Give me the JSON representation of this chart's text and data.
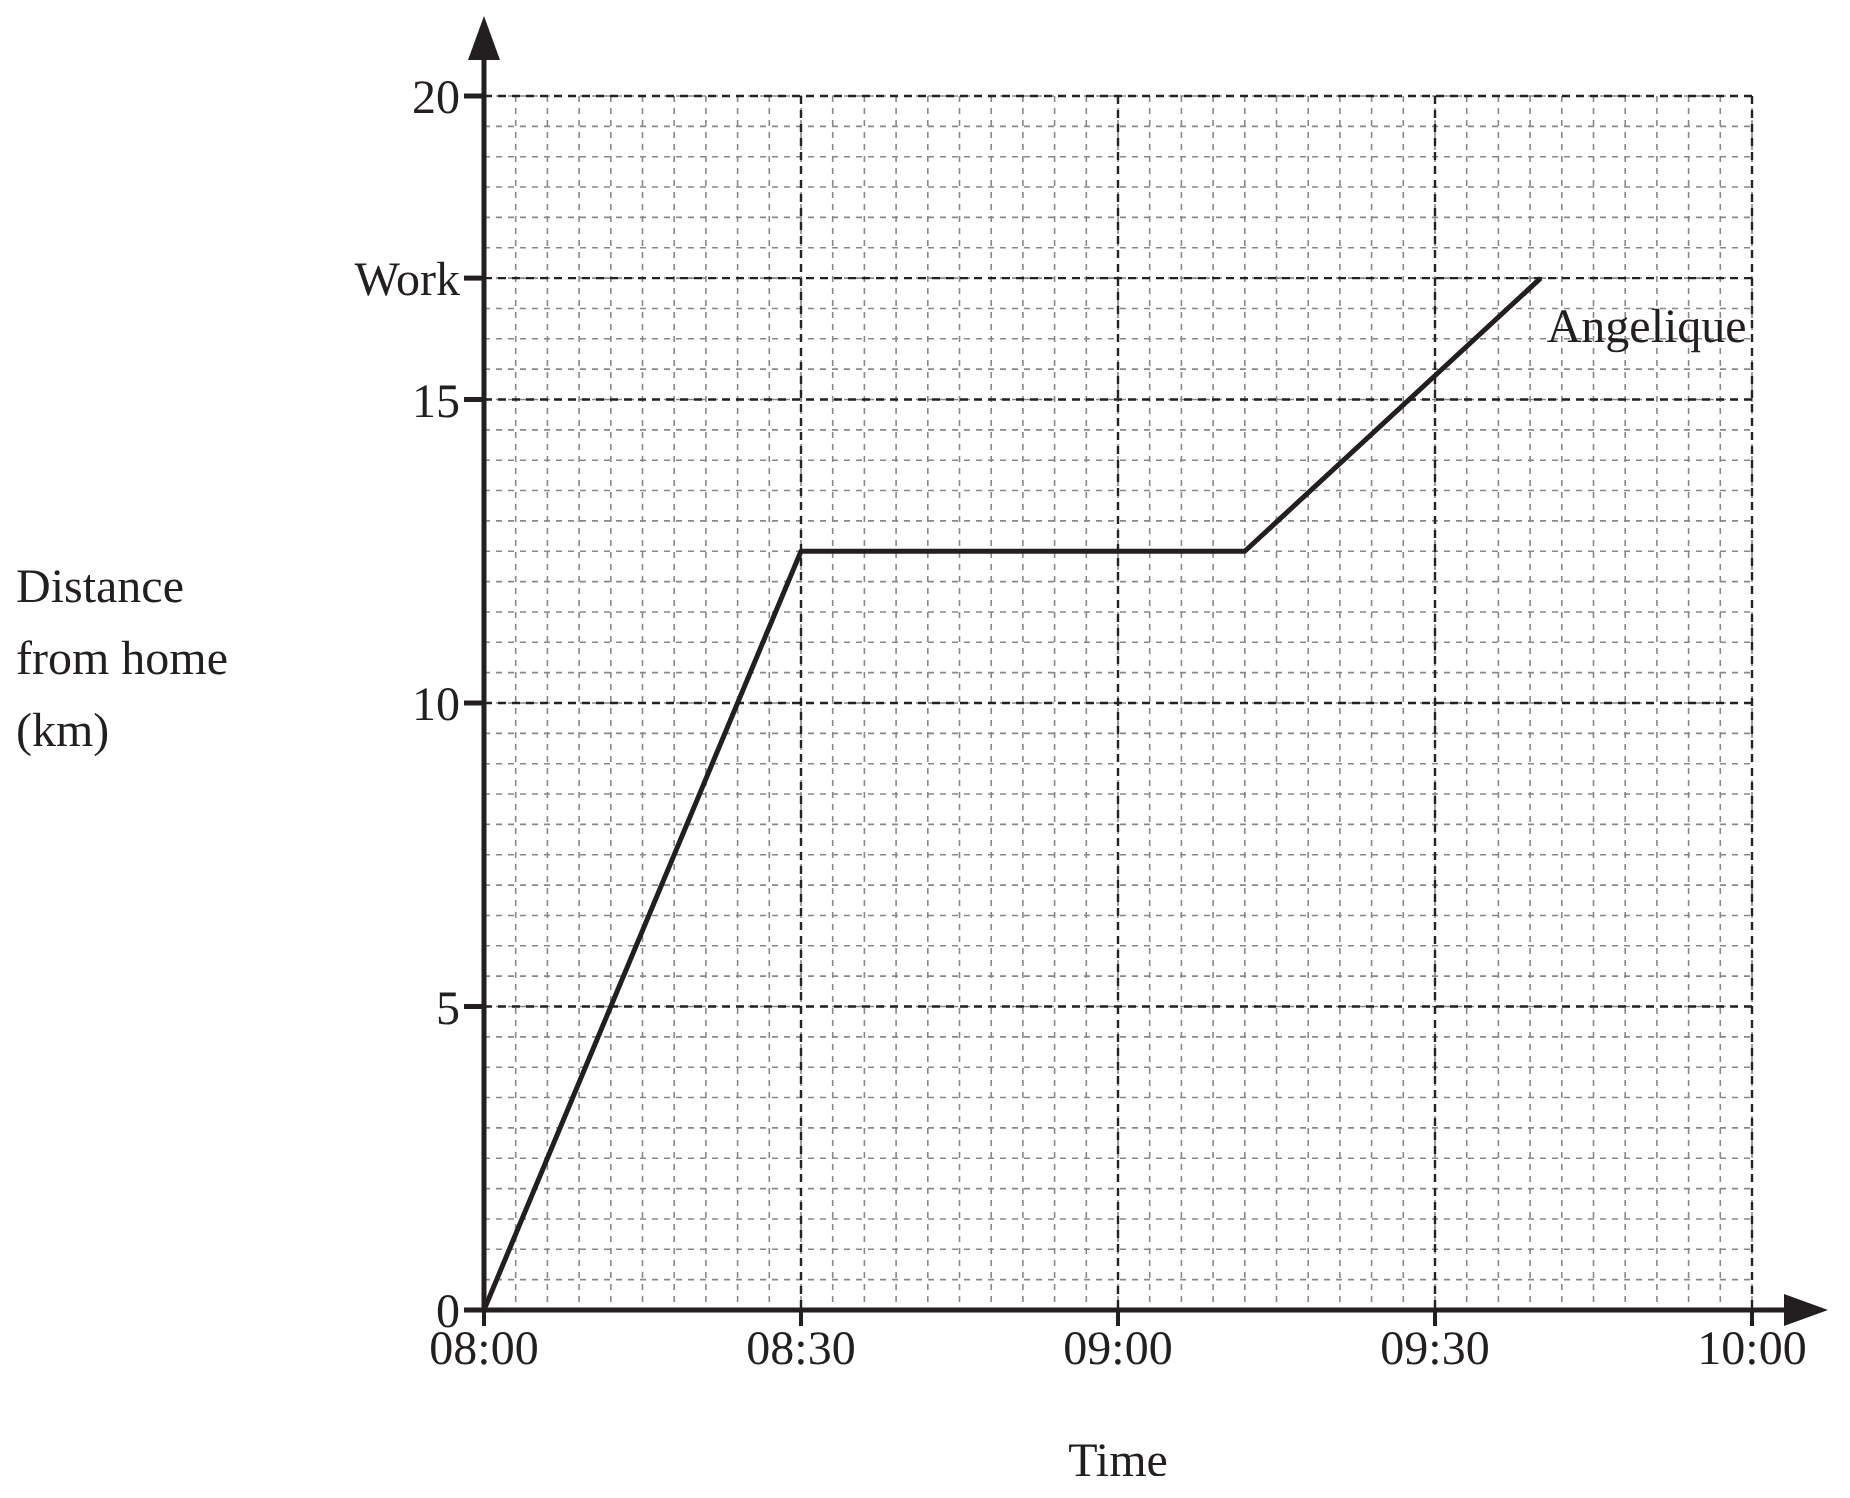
{
  "chart_data": {
    "type": "line",
    "xlabel": "Time",
    "ylabel": "Distance\nfrom home\n(km)",
    "x": [
      8,
      8.5,
      9.2,
      9.6667
    ],
    "series": [
      {
        "name": "Angelique",
        "color": "#231f20",
        "values": [
          0,
          12.5,
          12.5,
          17
        ]
      }
    ],
    "xlim": [
      8,
      10
    ],
    "ylim": [
      0,
      20
    ],
    "xticks": [
      {
        "value": 8,
        "label": "08:00"
      },
      {
        "value": 8.5,
        "label": "08:30"
      },
      {
        "value": 9,
        "label": "09:00"
      },
      {
        "value": 9.5,
        "label": "09:30"
      },
      {
        "value": 10,
        "label": "10:00"
      }
    ],
    "yticks": [
      0,
      5,
      10,
      15,
      20,
      {
        "value": 17,
        "label": "Work"
      }
    ],
    "grid": true,
    "marker": "none",
    "line_style": "solid"
  }
}
